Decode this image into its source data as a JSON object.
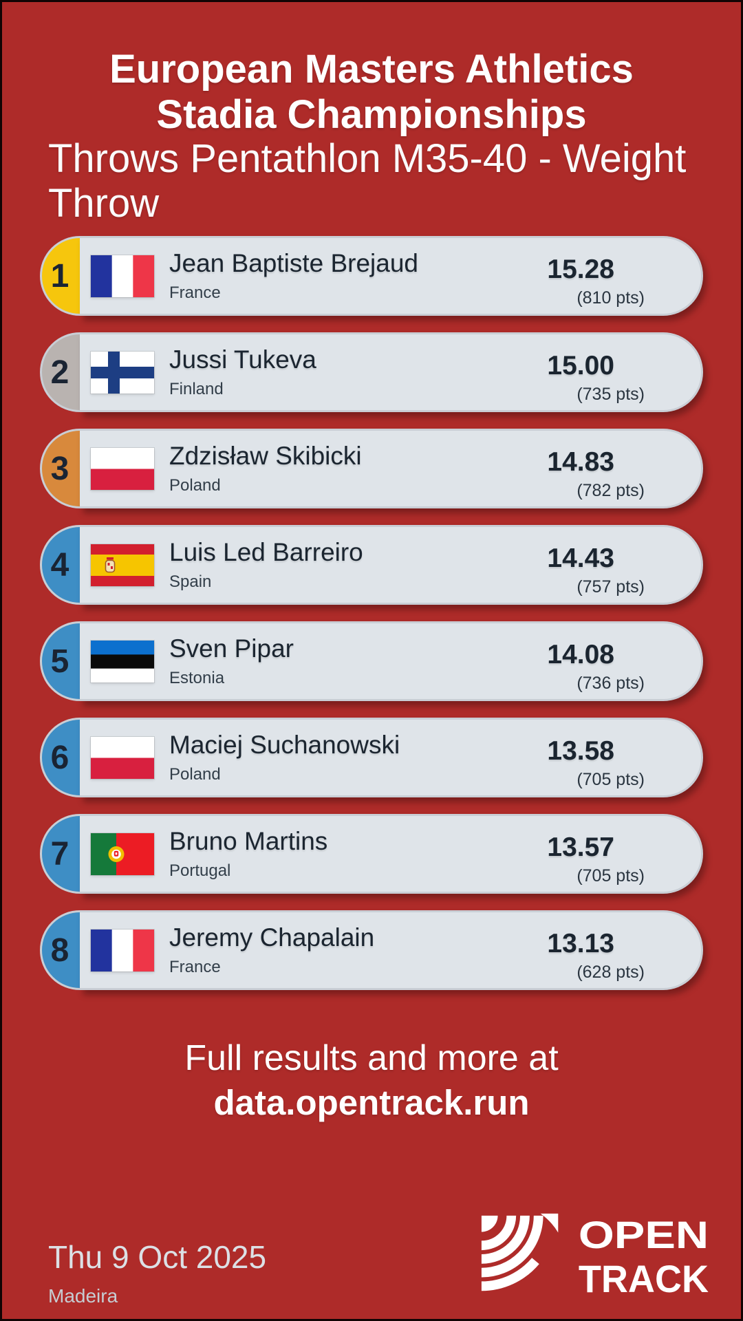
{
  "header": {
    "title_lines": [
      "European Masters Athletics",
      "Stadia Championships"
    ],
    "subtitle": "Throws Pentathlon M35-40 - Weight Throw"
  },
  "results": [
    {
      "rank": "1",
      "name": "Jean Baptiste Brejaud",
      "country": "France",
      "flag": "FR",
      "mark": "15.28",
      "points": "(810 pts)",
      "medal": "gold"
    },
    {
      "rank": "2",
      "name": "Jussi Tukeva",
      "country": "Finland",
      "flag": "FI",
      "mark": "15.00",
      "points": "(735 pts)",
      "medal": "silver"
    },
    {
      "rank": "3",
      "name": "Zdzisław Skibicki",
      "country": "Poland",
      "flag": "PL",
      "mark": "14.83",
      "points": "(782 pts)",
      "medal": "bronze"
    },
    {
      "rank": "4",
      "name": "Luis Led Barreiro",
      "country": "Spain",
      "flag": "ES",
      "mark": "14.43",
      "points": "(757 pts)",
      "medal": "default"
    },
    {
      "rank": "5",
      "name": "Sven Pipar",
      "country": "Estonia",
      "flag": "EE",
      "mark": "14.08",
      "points": "(736 pts)",
      "medal": "default"
    },
    {
      "rank": "6",
      "name": "Maciej Suchanowski",
      "country": "Poland",
      "flag": "PL",
      "mark": "13.58",
      "points": "(705 pts)",
      "medal": "default"
    },
    {
      "rank": "7",
      "name": "Bruno Martins",
      "country": "Portugal",
      "flag": "PT",
      "mark": "13.57",
      "points": "(705 pts)",
      "medal": "default"
    },
    {
      "rank": "8",
      "name": "Jeremy Chapalain",
      "country": "France",
      "flag": "FR",
      "mark": "13.13",
      "points": "(628 pts)",
      "medal": "default"
    }
  ],
  "footer": {
    "more_line1": "Full results and more at",
    "more_line2": "data.opentrack.run",
    "date": "Thu 9 Oct 2025",
    "location": "Madeira",
    "logo_word1": "OPEN",
    "logo_word2": "TRACK"
  },
  "colors": {
    "background": "#AE2B29",
    "card": "#DFE4E9",
    "card_border": "#C9CED5",
    "rank_text": "#1A2433",
    "name_text": "#1B2530",
    "medals": {
      "gold": "#F6C60D",
      "silver": "#B9B3B0",
      "bronze": "#D8893C",
      "default": "#3E8EC5"
    }
  },
  "flags": {
    "FR": {
      "type": "vertical",
      "colors": [
        "#22339E",
        "#FFFFFF",
        "#EE3648"
      ]
    },
    "FI": {
      "type": "nordic",
      "bg": "#FFFFFF",
      "cross": "#1D3E83"
    },
    "PL": {
      "type": "horizontal",
      "colors": [
        "#FFFFFF",
        "#D8203F"
      ]
    },
    "ES": {
      "type": "spain",
      "red": "#D21F2E",
      "yellow": "#F6C500"
    },
    "EE": {
      "type": "horizontal",
      "colors": [
        "#0C70CE",
        "#0A0A0A",
        "#FFFFFF"
      ]
    },
    "PT": {
      "type": "portugal",
      "green": "#15793A",
      "red": "#EC1C24",
      "yellow": "#F1BE00"
    }
  }
}
